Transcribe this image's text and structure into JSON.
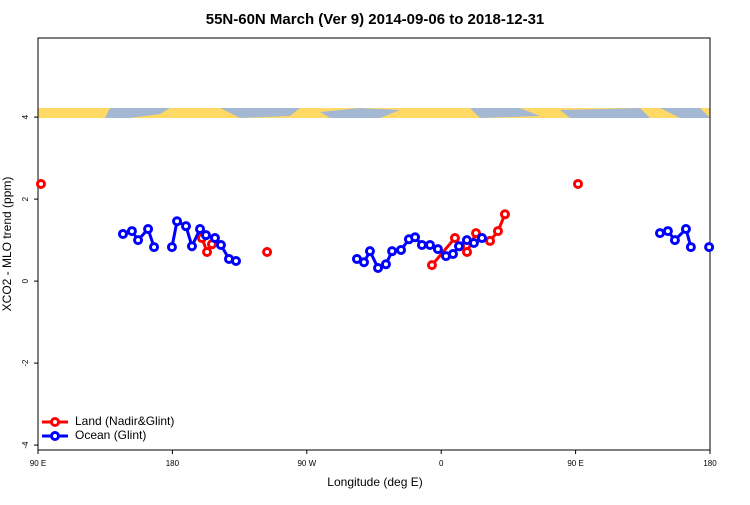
{
  "chart_data": {
    "type": "line",
    "title": "55N-60N March (Ver 9)   2014-09-06 to 2018-12-31",
    "x_label": "Longitude (deg E)",
    "y_label": "XCO2 - MLO trend (ppm)",
    "xlim": [
      90,
      540
    ],
    "ylim": [
      -4.12,
      5.93
    ],
    "xticks": [
      {
        "value": 90,
        "label": "90 E"
      },
      180,
      {
        "value": 270,
        "label": "90 W"
      },
      {
        "value": 360,
        "label": "0"
      },
      {
        "value": 450,
        "label": "90 E"
      },
      {
        "value": 540,
        "label": "180"
      }
    ],
    "yticks": [
      -4,
      -2,
      0,
      2,
      4
    ],
    "legend": "bottom-left",
    "series": [
      {
        "name": "Land (Nadir&Glint)",
        "color": "#ff0000",
        "x": [
          92.0,
          null,
          199.8,
          203.2,
          206.5,
          null,
          243.4,
          null,
          353.8,
          369.2,
          372.6,
          377.3,
          383.3,
          392.7,
          398.0,
          402.7,
          null,
          451.6
        ],
        "values": [
          2.37,
          null,
          1.05,
          0.71,
          0.9,
          null,
          0.71,
          null,
          0.39,
          1.05,
          0.85,
          0.71,
          1.17,
          0.98,
          1.22,
          1.63,
          null,
          2.37
        ]
      },
      {
        "name": "Ocean (Glint)",
        "color": "#0000ff",
        "x": [
          146.9,
          152.9,
          157.0,
          163.7,
          167.7,
          null,
          179.7,
          183.1,
          189.1,
          193.1,
          198.5,
          202.5,
          208.5,
          212.5,
          217.9,
          222.6,
          null,
          303.6,
          308.3,
          312.3,
          317.7,
          323.0,
          327.1,
          333.1,
          338.4,
          342.5,
          347.1,
          352.5,
          357.8,
          363.2,
          367.9,
          371.9,
          377.2,
          381.9,
          387.3,
          null,
          506.5,
          511.8,
          516.5,
          523.9,
          527.2,
          null,
          539.4
        ],
        "values": [
          1.15,
          1.22,
          1.0,
          1.27,
          0.83,
          null,
          0.83,
          1.46,
          1.34,
          0.85,
          1.27,
          1.12,
          1.05,
          0.88,
          0.54,
          0.49,
          null,
          0.54,
          0.46,
          0.73,
          0.32,
          0.41,
          0.73,
          0.76,
          1.02,
          1.07,
          0.88,
          0.88,
          0.78,
          0.61,
          0.66,
          0.85,
          1.0,
          0.93,
          1.05,
          null,
          1.17,
          1.22,
          1.0,
          1.27,
          0.83,
          null,
          0.83
        ]
      }
    ]
  }
}
